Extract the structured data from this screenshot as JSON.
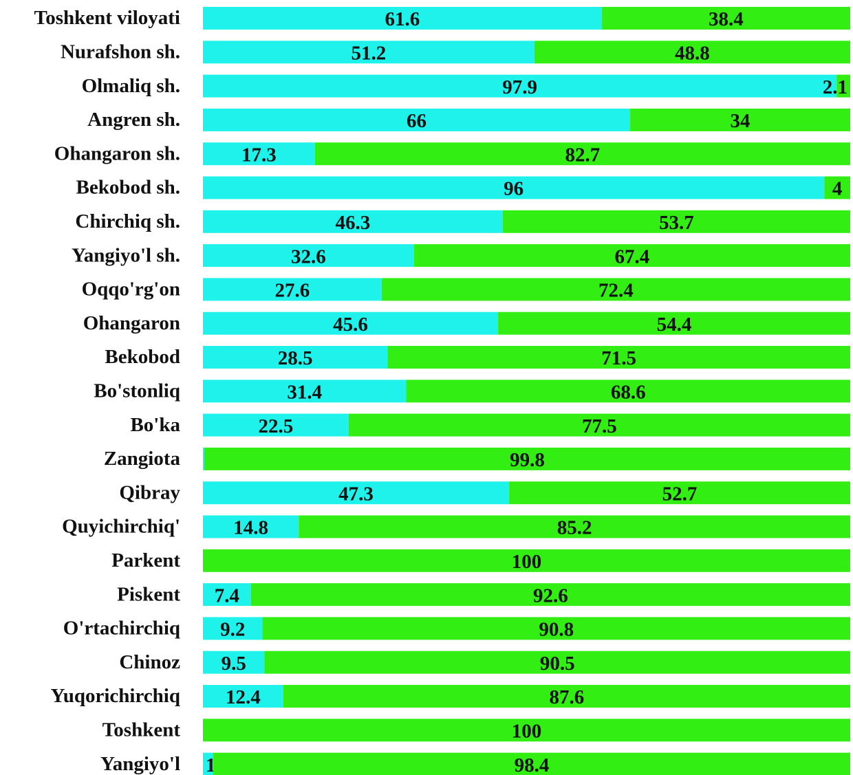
{
  "chart_data": {
    "type": "stacked_bar_100",
    "orientation": "horizontal",
    "categories": [
      "Toshkent viloyati",
      "Nurafshon sh.",
      "Olmaliq sh.",
      "Angren sh.",
      "Ohangaron sh.",
      "Bekobod sh.",
      "Chirchiq sh.",
      "Yangiyo'l sh.",
      "Oqqo'rg'on",
      "Ohangaron",
      "Bekobod",
      "Bo'stonliq",
      "Bo'ka",
      "Zangiota",
      "Qibray",
      "Quyichirchiq'",
      "Parkent",
      "Piskent",
      "O'rtachirchiq",
      "Chinoz",
      "Yuqorichirchiq",
      "Toshkent",
      "Yangiyo'l"
    ],
    "series": [
      {
        "color": "#1ef2ea",
        "values": [
          61.6,
          51.2,
          97.9,
          66,
          17.3,
          96,
          46.3,
          32.6,
          27.6,
          45.6,
          28.5,
          31.4,
          22.5,
          0.2,
          47.3,
          14.8,
          null,
          7.4,
          9.2,
          9.5,
          12.4,
          null,
          1.6
        ]
      },
      {
        "color": "#33ee12",
        "values": [
          38.4,
          48.8,
          2.1,
          34,
          82.7,
          4,
          53.7,
          67.4,
          72.4,
          54.4,
          71.5,
          68.6,
          77.5,
          99.8,
          52.7,
          85.2,
          100,
          92.6,
          90.8,
          90.5,
          87.6,
          100,
          98.4
        ]
      }
    ],
    "xlim": [
      0,
      100
    ]
  }
}
